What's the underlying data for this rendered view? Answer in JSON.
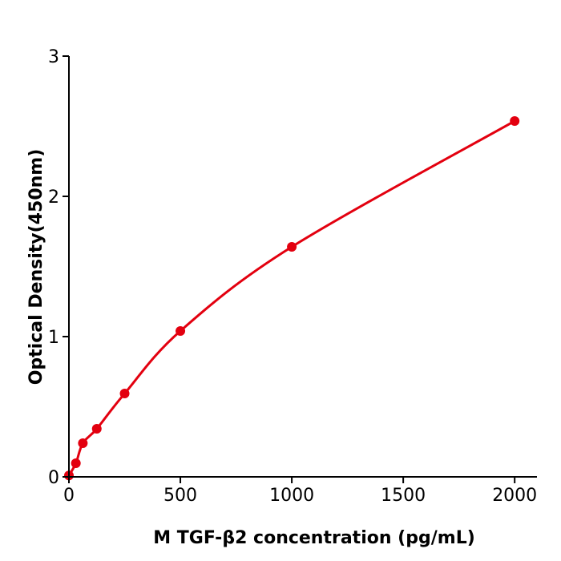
{
  "chart_data": {
    "type": "scatter",
    "title": "",
    "xlabel": "M  TGF-β2 concentration (pg/mL)",
    "ylabel": "Optical Density(450nm)",
    "xlim": [
      0,
      2100
    ],
    "ylim": [
      0,
      3
    ],
    "xticks": [
      "0",
      "500",
      "1000",
      "1500",
      "2000"
    ],
    "yticks": [
      "0",
      "1",
      "2",
      "3"
    ],
    "grid": false,
    "color": "#e3000f",
    "series": [
      {
        "x": [
          0,
          31.25,
          62.5,
          125,
          250,
          500,
          1000,
          2000
        ],
        "y": [
          0.01,
          0.097,
          0.24,
          0.343,
          0.594,
          1.04,
          1.64,
          2.537
        ]
      }
    ],
    "fit_curve": true
  }
}
